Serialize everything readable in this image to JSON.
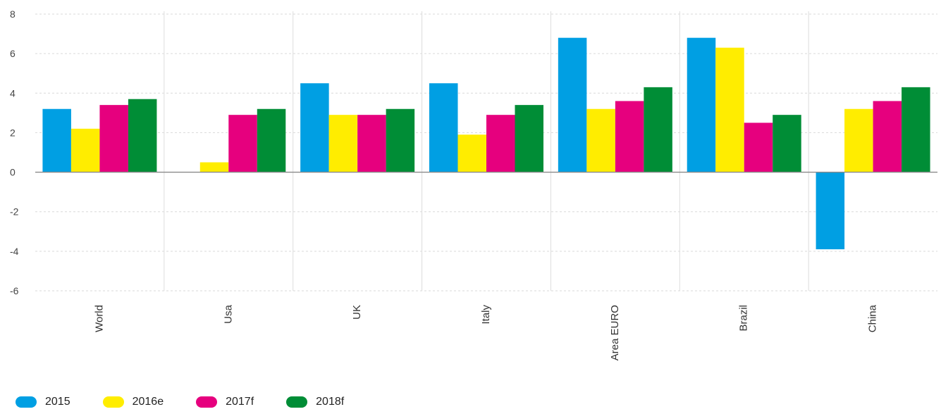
{
  "chart_data": {
    "type": "bar",
    "categories": [
      "World",
      "Usa",
      "UK",
      "Italy",
      "Area EURO",
      "Brazil",
      "China"
    ],
    "series": [
      {
        "name": "2015",
        "color": "#009fe3",
        "values": [
          3.2,
          null,
          4.5,
          4.5,
          6.8,
          6.8,
          -3.9
        ]
      },
      {
        "name": "2016e",
        "color": "#ffed00",
        "values": [
          2.2,
          0.5,
          2.9,
          1.9,
          3.2,
          6.3,
          3.2
        ]
      },
      {
        "name": "2017f",
        "color": "#e6007e",
        "values": [
          3.4,
          2.9,
          2.9,
          2.9,
          3.6,
          2.5,
          3.6
        ]
      },
      {
        "name": "2018f",
        "color": "#008d36",
        "values": [
          3.7,
          3.2,
          3.2,
          3.4,
          4.3,
          2.9,
          4.3
        ]
      }
    ],
    "ylim": [
      -6,
      8
    ],
    "yticks": [
      8,
      6,
      4,
      2,
      0,
      -2,
      -4,
      -6
    ],
    "legend_position": "bottom-left",
    "grid": true
  }
}
